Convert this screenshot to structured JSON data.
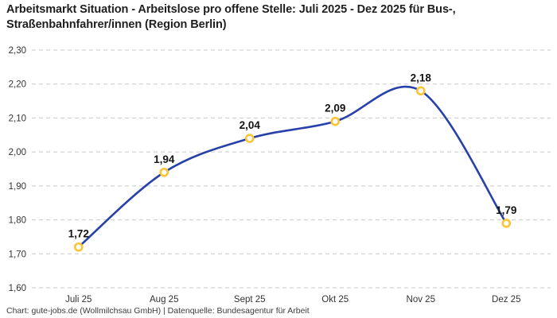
{
  "header": {
    "title": "Arbeitsmarkt Situation - Arbeitslose pro offene Stelle: Juli 2025 - Dez 2025 für Bus-, Straßenbahnfahrer/innen (Region Berlin)"
  },
  "footer": {
    "credit": "Chart: gute-jobs.de (Wollmilchsau GmbH) | Datenquelle: Bundesagentur für Arbeit"
  },
  "chart_data": {
    "type": "line",
    "title": "Arbeitsmarkt Situation - Arbeitslose pro offene Stelle: Juli 2025 - Dez 2025 für Bus-, Straßenbahnfahrer/innen (Region Berlin)",
    "categories": [
      "Juli 25",
      "Aug 25",
      "Sept 25",
      "Okt 25",
      "Nov 25",
      "Dez 25"
    ],
    "values": [
      1.72,
      1.94,
      2.04,
      2.09,
      2.18,
      1.79
    ],
    "value_labels": [
      "1,72",
      "1,94",
      "2,04",
      "2,09",
      "2,18",
      "1,79"
    ],
    "xlabel": "",
    "ylabel": "",
    "ylim": [
      1.6,
      2.3
    ],
    "y_ticks": [
      1.6,
      1.7,
      1.8,
      1.9,
      2.0,
      2.1,
      2.2,
      2.3
    ],
    "y_tick_labels": [
      "1,60",
      "1,70",
      "1,80",
      "1,90",
      "2,00",
      "2,10",
      "2,20",
      "2,30"
    ],
    "grid": "horizontal-dashed",
    "legend": "none",
    "line_color": "#2841aa",
    "marker_color": "#fcc434",
    "grid_color": "#c9c9c9",
    "tick_text_color": "#333333",
    "label_text_color": "#141414"
  }
}
